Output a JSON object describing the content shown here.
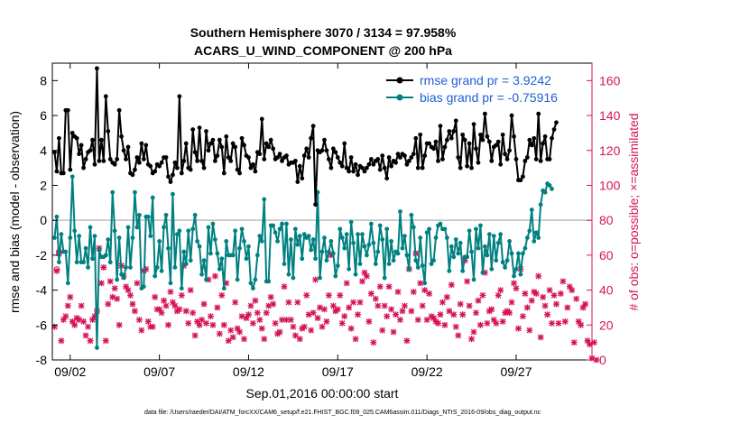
{
  "chart_data": {
    "type": "line",
    "title": "Southern Hemisphere 3070 / 3134 = 97.958%",
    "subtitle": "ACARS_U_WIND_COMPONENT @ 200 hPa",
    "xlabel": "Sep.01,2016 00:00:00 start",
    "ylabel": "rmse and bias (model - observation)",
    "ylabel_right": "# of obs: o=possible; ×=assimilated",
    "footnote": "data file: /Users/raeder/DAI/ATM_forcXX/CAM6_setup/f.e21.FHIST_BGC.f09_025.CAM6assim.011/Diags_NTrS_2016-09/obs_diag_output.nc",
    "xlim": [
      1,
      31.25
    ],
    "ylim": [
      -8,
      9
    ],
    "ylim_right": [
      0,
      170
    ],
    "x_ticks": [
      2,
      7,
      12,
      17,
      22,
      27
    ],
    "x_tick_labels": [
      "09/02",
      "09/07",
      "09/12",
      "09/17",
      "09/22",
      "09/27"
    ],
    "y_ticks": [
      -8,
      -6,
      -4,
      -2,
      0,
      2,
      4,
      6,
      8
    ],
    "y_tick_labels": [
      "-8",
      "-6",
      "-4",
      "-2",
      "0",
      "2",
      "4",
      "6",
      "8"
    ],
    "y_ticks_right": [
      0,
      20,
      40,
      60,
      80,
      100,
      120,
      140,
      160
    ],
    "y_tick_labels_right": [
      "0",
      "20",
      "40",
      "60",
      "80",
      "100",
      "120",
      "140",
      "160"
    ],
    "zero_line": 0,
    "legend_position": "top-right",
    "colors": {
      "rmse": "#000000",
      "bias": "#008080",
      "obs": "#d4145a",
      "legend_text": "#1f5fd6",
      "zero_line": "#bfbfbf"
    },
    "series": [
      {
        "name": "rmse grand pr = 3.9242",
        "values": [
          3.9,
          2.8,
          4.7,
          2.7,
          2.7,
          6.3,
          6.3,
          2.9,
          5.0,
          4.8,
          4.7,
          3.8,
          4.3,
          3.0,
          3.5,
          3.9,
          4.0,
          4.6,
          3.2,
          8.7,
          3.4,
          4.6,
          3.4,
          7.1,
          5.1,
          3.5,
          3.3,
          3.2,
          3.5,
          6.3,
          4.8,
          4.0,
          3.5,
          4.2,
          2.7,
          2.6,
          2.9,
          3.6,
          3.3,
          4.4,
          3.5,
          4.3,
          3.2,
          3.1,
          2.7,
          2.8,
          3.2,
          3.1,
          3.3,
          3.6,
          3.6,
          2.5,
          2.2,
          2.6,
          3.3,
          3.0,
          7.1,
          2.7,
          3.4,
          4.4,
          3.0,
          2.9,
          5.2,
          3.9,
          3.4,
          5.3,
          3.4,
          3.0,
          5.1,
          4.0,
          4.4,
          4.6,
          3.4,
          3.7,
          4.6,
          4.2,
          2.7,
          4.8,
          3.6,
          3.4,
          4.4,
          4.2,
          2.9,
          2.7,
          4.7,
          4.3,
          3.7,
          3.6,
          3.0,
          3.2,
          2.8,
          3.9,
          3.8,
          5.8,
          3.5,
          4.4,
          4.2,
          4.6,
          4.1,
          3.5,
          3.6,
          3.8,
          3.4,
          3.6,
          3.7,
          3.2,
          3.3,
          3.3,
          3.4,
          2.2,
          3.1,
          2.4,
          3.7,
          4.1,
          3.6,
          4.7,
          5.4,
          0.9,
          4.0,
          3.9,
          4.0,
          4.6,
          4.0,
          3.5,
          3.0,
          4.1,
          3.9,
          3.6,
          3.3,
          3.1,
          4.4,
          3.0,
          2.8,
          3.6,
          2.8,
          3.2,
          2.6,
          3.1,
          3.0,
          2.8,
          3.0,
          3.2,
          3.5,
          3.2,
          3.4,
          3.5,
          2.9,
          3.7,
          3.0,
          2.4,
          3.6,
          3.1,
          3.4,
          3.3,
          3.8,
          3.6,
          3.8,
          3.7,
          3.2,
          3.4,
          3.6,
          3.8,
          4.7,
          3.0,
          4.9,
          3.0,
          3.7,
          4.4,
          4.4,
          4.2,
          4.1,
          4.5,
          3.4,
          5.4,
          3.5,
          4.2,
          4.6,
          5.1,
          4.7,
          5.1,
          5.7,
          3.6,
          3.0,
          4.9,
          4.6,
          3.1,
          4.4,
          3.0,
          5.5,
          4.1,
          3.3,
          4.9,
          4.6,
          6.1,
          4.8,
          4.5,
          3.4,
          4.2,
          4.3,
          4.5,
          3.2,
          4.9,
          3.8,
          3.5,
          4.0,
          6.0,
          4.8,
          3.5,
          2.3,
          2.3,
          2.5,
          3.4,
          3.6,
          4.6,
          4.3,
          4.7,
          3.5,
          6.1,
          3.4,
          4.4,
          4.8,
          3.5,
          3.5,
          4.7,
          5.2,
          5.6
        ]
      },
      {
        "name": "bias grand pr = -0.75916",
        "values": [
          -1.0,
          0.2,
          -2.4,
          -0.8,
          -1.8,
          -1.8,
          -3.6,
          -1.0,
          2.5,
          -0.6,
          -2.4,
          -0.9,
          -2.4,
          -2.4,
          -1.6,
          -2.7,
          -0.4,
          -2.2,
          -0.9,
          -7.3,
          -1.7,
          -2.1,
          -2.1,
          -2.0,
          -1.1,
          -2.4,
          1.6,
          -0.6,
          -3.4,
          -1.0,
          -3.1,
          -3.3,
          -2.7,
          -0.4,
          -2.7,
          -1.0,
          1.6,
          -0.4,
          0.3,
          -3.9,
          -3.8,
          0.2,
          0.2,
          -0.9,
          1.3,
          -3.2,
          -2.7,
          -1.2,
          -2.9,
          -0.4,
          0.3,
          -1.6,
          -3.6,
          1.5,
          -2.7,
          -0.8,
          -0.6,
          -3.9,
          -1.8,
          -2.5,
          -0.6,
          -2.3,
          -0.5,
          0.3,
          -1.2,
          -1.5,
          -3.1,
          -2.3,
          -3.4,
          -0.4,
          -1.9,
          -0.2,
          -1.1,
          -1.9,
          -2.8,
          -2.2,
          -3.9,
          -1.2,
          -2.0,
          -2.0,
          -2.0,
          -0.6,
          -3.4,
          -1.6,
          -0.5,
          -1.2,
          -2.2,
          -1.5,
          -3.6,
          -3.9,
          -3.4,
          -2.0,
          -0.9,
          -1.2,
          1.2,
          -3.5,
          -3.5,
          -0.3,
          -0.3,
          -0.7,
          -1.2,
          -0.5,
          -0.2,
          -2.5,
          -0.2,
          -3.1,
          -1.1,
          -3.3,
          -0.5,
          -1.4,
          -0.9,
          -2.2,
          -0.8,
          -1.0,
          -0.9,
          -1.7,
          -1.1,
          -2.2,
          1.6,
          -3.3,
          -1.8,
          -1.0,
          -2.3,
          -1.8,
          -1.2,
          -1.9,
          -3.2,
          -2.6,
          -0.5,
          -1.0,
          -1.6,
          -0.8,
          -2.8,
          -0.1,
          -1.3,
          -3.1,
          -0.8,
          -2.5,
          -0.8,
          -1.5,
          -2.0,
          -1.4,
          -0.2,
          -1.3,
          -2.5,
          -1.8,
          -0.3,
          -1.1,
          -3.3,
          -0.5,
          -2.5,
          -1.2,
          -2.3,
          -1.8,
          -1.9,
          0.5,
          -1.6,
          -0.9,
          -2.0,
          -2.8,
          0.3,
          -0.4,
          -2.3,
          -2.7,
          -1.0,
          -2.6,
          -3.6,
          -0.7,
          -0.5,
          -2.5,
          -2.3,
          -1.0,
          -0.3,
          -0.2,
          -0.5,
          -0.5,
          -1.0,
          -2.9,
          -1.5,
          -2.1,
          -1.1,
          -1.9,
          -1.3,
          -2.9,
          -2.1,
          -2.1,
          -0.6,
          -1.8,
          -3.4,
          -0.5,
          -1.6,
          -0.3,
          -3.0,
          -1.5,
          -2.0,
          -0.8,
          -2.8,
          -0.9,
          -2.3,
          -1.3,
          -0.8,
          -2.4,
          -2.7,
          -2.3,
          -1.2,
          -1.9,
          -3.2,
          -2.8,
          -1.9,
          -3.1,
          -1.9,
          -1.6,
          -1.0,
          -0.6,
          0.6,
          -1.2,
          -0.7,
          -1.0,
          0.9,
          1.7,
          1.6,
          2.1,
          2.0,
          1.8
        ]
      }
    ],
    "obs_counts": {
      "axis": "right",
      "assimilated": [
        19,
        51,
        61,
        11,
        23,
        25,
        31,
        36,
        22,
        20,
        24,
        23,
        31,
        22,
        14,
        19,
        11,
        23,
        25,
        28,
        64,
        44,
        53,
        11,
        32,
        45,
        36,
        41,
        35,
        20,
        54,
        48,
        42,
        40,
        37,
        32,
        28,
        44,
        23,
        17,
        51,
        52,
        22,
        19,
        19,
        36,
        29,
        29,
        27,
        34,
        31,
        20,
        39,
        33,
        31,
        28,
        29,
        37,
        54,
        28,
        21,
        40,
        27,
        14,
        22,
        20,
        23,
        32,
        21,
        46,
        25,
        20,
        48,
        30,
        15,
        37,
        20,
        44,
        11,
        17,
        13,
        33,
        18,
        16,
        25,
        12,
        24,
        26,
        31,
        21,
        34,
        27,
        23,
        18,
        12,
        27,
        31,
        36,
        32,
        21,
        15,
        16,
        23,
        42,
        23,
        33,
        23,
        19,
        14,
        33,
        12,
        18,
        19,
        37,
        26,
        17,
        27,
        46,
        24,
        30,
        19,
        29,
        22,
        37,
        60,
        31,
        28,
        29,
        37,
        21,
        25,
        44,
        30,
        18,
        33,
        12,
        26,
        33,
        45,
        50,
        48,
        22,
        38,
        10,
        35,
        31,
        42,
        17,
        31,
        25,
        42,
        29,
        16,
        26,
        39,
        23,
        28,
        31,
        11,
        52,
        28,
        39,
        61,
        23,
        44,
        31,
        40,
        23,
        38,
        25,
        24,
        22,
        21,
        26,
        33,
        20,
        36,
        28,
        43,
        26,
        19,
        14,
        32,
        26,
        57,
        45,
        31,
        12,
        16,
        27,
        34,
        20,
        37,
        50,
        21,
        28,
        29,
        23,
        21,
        37,
        40,
        22,
        27,
        28,
        27,
        33,
        44,
        41,
        18,
        52,
        25,
        38,
        30,
        17,
        34,
        39,
        38,
        48,
        13,
        36,
        31,
        26,
        40,
        21,
        37,
        32,
        21,
        38,
        45,
        22,
        30,
        42,
        40,
        10,
        35,
        22,
        20,
        30,
        32,
        11,
        9,
        1,
        10,
        0
      ],
      "possible": [
        19,
        52,
        62,
        11,
        23,
        25,
        31,
        36,
        22,
        20,
        24,
        23,
        31,
        22,
        14,
        19,
        11,
        23,
        25,
        28,
        64,
        44,
        53,
        11,
        32,
        45,
        36,
        41,
        35,
        20,
        54,
        48,
        42,
        40,
        37,
        32,
        28,
        44,
        23,
        17,
        51,
        52,
        22,
        19,
        19,
        36,
        29,
        29,
        27,
        34,
        31,
        20,
        39,
        33,
        31,
        28,
        29,
        37,
        54,
        28,
        21,
        40,
        27,
        14,
        22,
        20,
        23,
        32,
        21,
        46,
        25,
        20,
        48,
        30,
        15,
        37,
        20,
        44,
        11,
        17,
        13,
        33,
        18,
        16,
        25,
        12,
        24,
        26,
        31,
        21,
        34,
        27,
        23,
        18,
        12,
        27,
        31,
        36,
        32,
        21,
        15,
        16,
        23,
        42,
        23,
        33,
        23,
        19,
        14,
        33,
        12,
        18,
        19,
        37,
        26,
        17,
        27,
        46,
        24,
        30,
        19,
        29,
        22,
        37,
        60,
        31,
        28,
        29,
        37,
        21,
        25,
        44,
        30,
        18,
        33,
        12,
        26,
        33,
        45,
        50,
        48,
        22,
        38,
        10,
        35,
        31,
        42,
        17,
        31,
        25,
        42,
        29,
        16,
        26,
        39,
        23,
        28,
        31,
        11,
        52,
        28,
        39,
        61,
        23,
        44,
        31,
        40,
        23,
        38,
        25,
        24,
        22,
        21,
        26,
        33,
        20,
        36,
        28,
        43,
        26,
        19,
        14,
        32,
        26,
        57,
        45,
        31,
        12,
        16,
        27,
        34,
        20,
        37,
        50,
        21,
        28,
        29,
        23,
        21,
        37,
        40,
        22,
        27,
        28,
        27,
        33,
        44,
        41,
        18,
        52,
        25,
        38,
        30,
        17,
        34,
        39,
        38,
        48,
        13,
        36,
        31,
        26,
        40,
        21,
        37,
        32,
        21,
        38,
        45,
        22,
        30,
        42,
        40,
        10,
        35,
        22,
        20,
        30,
        32,
        11,
        9,
        1,
        10,
        0
      ]
    }
  }
}
